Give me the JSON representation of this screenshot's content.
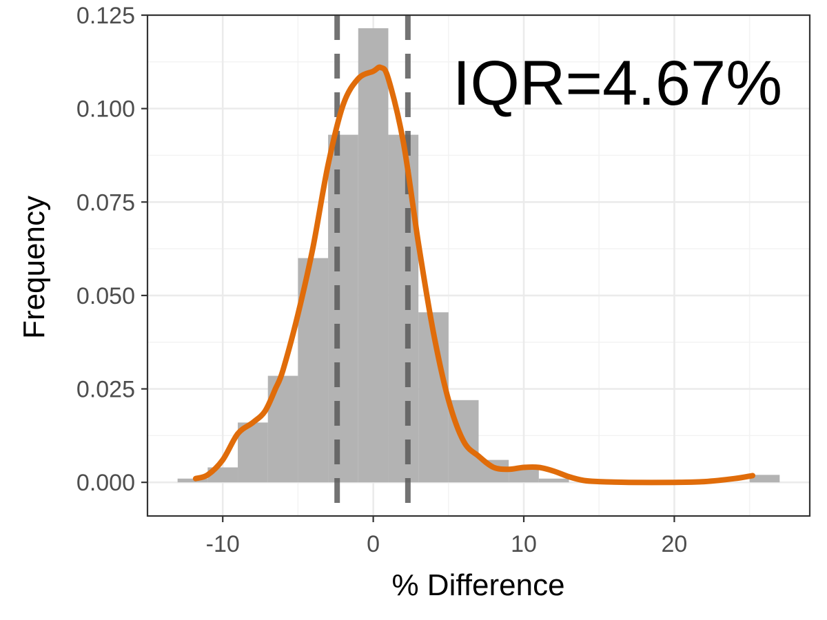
{
  "chart_data": {
    "type": "bar",
    "title": "",
    "xlabel": "% Difference",
    "ylabel": "Frequency",
    "annotation": "IQR=4.67%",
    "xlim": [
      -15,
      29
    ],
    "ylim": [
      -0.009,
      0.125
    ],
    "x_ticks": [
      -10,
      0,
      10,
      20
    ],
    "x_tick_labels": [
      "-10",
      "0",
      "10",
      "20"
    ],
    "y_ticks": [
      0,
      0.025,
      0.05,
      0.075,
      0.1,
      0.125
    ],
    "y_tick_labels": [
      "0.000",
      "0.025",
      "0.050",
      "0.075",
      "0.100",
      "0.125"
    ],
    "grid": true,
    "histogram": {
      "bin_width": 2,
      "bin_starts": [
        -13,
        -11,
        -9,
        -7,
        -5,
        -3,
        -1,
        1,
        3,
        5,
        7,
        9,
        11,
        13,
        15,
        17,
        19,
        21,
        23,
        25
      ],
      "values": [
        0.001,
        0.004,
        0.016,
        0.0285,
        0.06,
        0.093,
        0.1215,
        0.093,
        0.0455,
        0.022,
        0.006,
        0.004,
        0.001,
        0,
        0,
        0,
        0,
        0,
        0,
        0.002
      ],
      "color": "#b3b3b3"
    },
    "density": {
      "x": [
        -11.8,
        -11,
        -10,
        -9,
        -8,
        -7.2,
        -6.5,
        -6,
        -5,
        -4,
        -3,
        -2,
        -1,
        0,
        0.5,
        1,
        2,
        3,
        4,
        5,
        6,
        7,
        8,
        9,
        10,
        11,
        12,
        13,
        14,
        15,
        17,
        20,
        22,
        24,
        25.2
      ],
      "y": [
        0.001,
        0.002,
        0.006,
        0.013,
        0.016,
        0.019,
        0.025,
        0.03,
        0.045,
        0.063,
        0.085,
        0.101,
        0.108,
        0.11,
        0.111,
        0.108,
        0.091,
        0.064,
        0.04,
        0.022,
        0.011,
        0.007,
        0.004,
        0.0035,
        0.004,
        0.004,
        0.003,
        0.0015,
        0.0005,
        0.0002,
        0,
        0,
        0.0002,
        0.001,
        0.0018
      ],
      "color": "#e06c0a"
    },
    "reference_lines": {
      "x": [
        -2.4,
        2.3
      ],
      "style": "dashed",
      "color": "#5a5a5a"
    }
  }
}
